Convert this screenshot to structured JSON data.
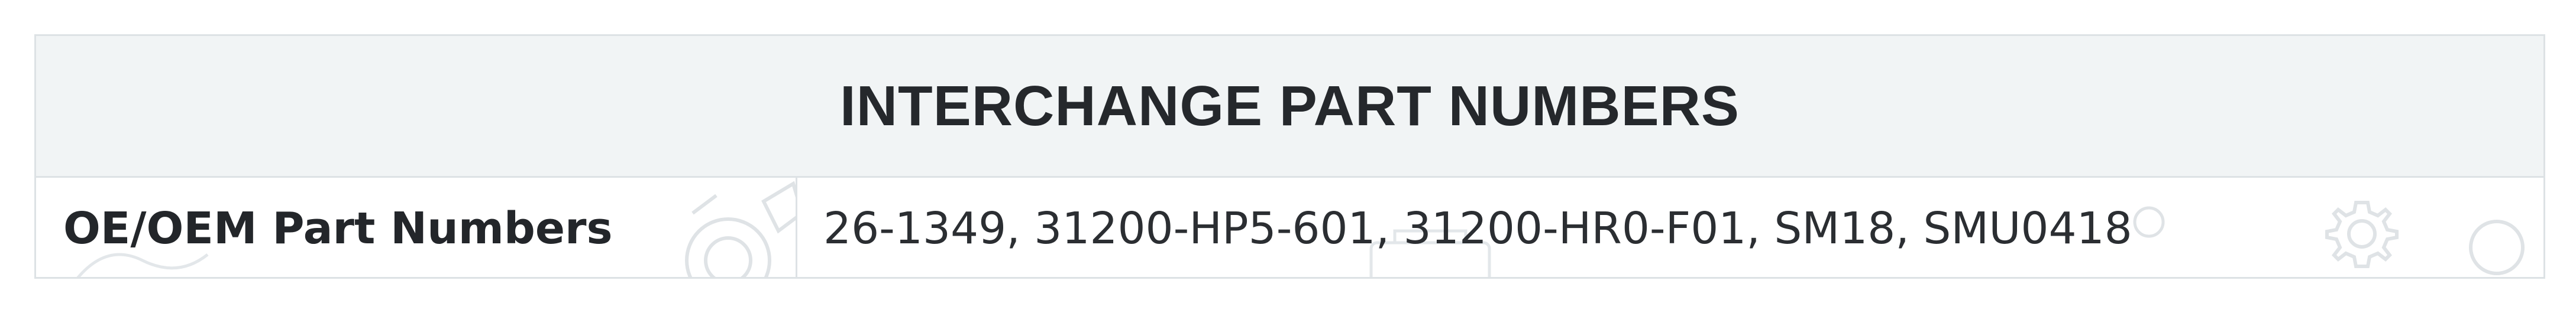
{
  "table": {
    "header": "INTERCHANGE PART NUMBERS",
    "rows": [
      {
        "label": "OE/OEM Part Numbers",
        "value": "26-1349, 31200-HP5-601, 31200-HR0-F01, SM18, SMU0418"
      }
    ]
  },
  "colors": {
    "header_bg": "#f1f4f5",
    "border": "#dde2e5",
    "text": "#25282c",
    "watermark": "#dfe3e6"
  },
  "icons": [
    "gear-icon",
    "circle-icon",
    "engine-part-icon"
  ]
}
